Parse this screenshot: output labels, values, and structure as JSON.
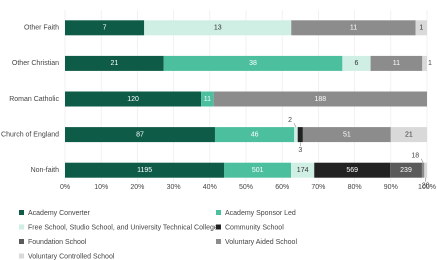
{
  "chart_data": {
    "type": "stacked-bar-100",
    "categories": [
      "Other Faith",
      "Other Christian",
      "Roman Catholic",
      "Church of England",
      "Non-faith"
    ],
    "series": [
      {
        "name": "Academy Converter",
        "color": "#0e5b48",
        "values": [
          7,
          21,
          120,
          87,
          1195
        ]
      },
      {
        "name": "Academy Sponsor Led",
        "color": "#4cbf9f",
        "values": [
          0,
          38,
          11,
          46,
          501
        ]
      },
      {
        "name": "Free School, Studio School, and University Technical College",
        "color": "#cfeee4",
        "values": [
          13,
          6,
          0,
          2,
          174
        ]
      },
      {
        "name": "Community School",
        "color": "#222222",
        "values": [
          0,
          0,
          0,
          3,
          569
        ]
      },
      {
        "name": "Foundation School",
        "color": "#5a5a5a",
        "values": [
          0,
          0,
          0,
          0,
          239
        ]
      },
      {
        "name": "Voluntary Aided School",
        "color": "#8c8c8c",
        "values": [
          11,
          11,
          188,
          51,
          18
        ]
      },
      {
        "name": "Voluntary Controlled School",
        "color": "#d9d9d9",
        "values": [
          1,
          1,
          0,
          21,
          20
        ]
      }
    ],
    "xlim": [
      0,
      100
    ],
    "xticks": [
      {
        "value": 0,
        "label": "0%"
      },
      {
        "value": 10,
        "label": "10%"
      },
      {
        "value": 20,
        "label": "20%"
      },
      {
        "value": 30,
        "label": "30%"
      },
      {
        "value": 40,
        "label": "40%"
      },
      {
        "value": 50,
        "label": "50%"
      },
      {
        "value": 60,
        "label": "60%"
      },
      {
        "value": 70,
        "label": "70%"
      },
      {
        "value": 80,
        "label": "80%"
      },
      {
        "value": 90,
        "label": "90%"
      },
      {
        "value": 100,
        "label": "100%"
      }
    ],
    "grid": true
  }
}
